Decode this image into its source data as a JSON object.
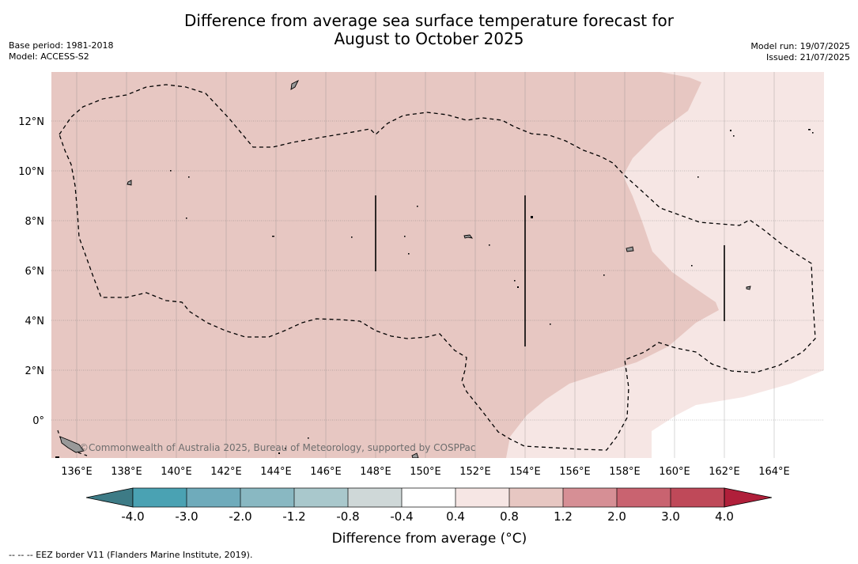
{
  "title": {
    "line1": "Difference from average sea surface temperature forecast for",
    "line2": "August to October 2025"
  },
  "meta_left": {
    "base_period": "Base period: 1981-2018",
    "model": "Model: ACCESS-S2"
  },
  "meta_right": {
    "model_run": "Model run: 19/07/2025",
    "issued": "Issued: 21/07/2025"
  },
  "map": {
    "longitude_ticks": [
      "136°E",
      "138°E",
      "140°E",
      "142°E",
      "144°E",
      "146°E",
      "148°E",
      "150°E",
      "152°E",
      "154°E",
      "156°E",
      "158°E",
      "160°E",
      "162°E",
      "164°E"
    ],
    "latitude_ticks": [
      "12°N",
      "10°N",
      "8°N",
      "6°N",
      "4°N",
      "2°N",
      "0°"
    ],
    "lon_range": [
      135,
      166
    ],
    "lat_range": [
      -1.5,
      14
    ],
    "copyright": "©Commonwealth of Australia 2025, Bureau of Meteorology, supported by COSPPac",
    "shading_colors": {
      "range_0_4_to_0_8": "#f6e6e4",
      "range_0_8_to_1_2": "#e7c7c2",
      "range_minus_0_4_to_0_4": "#ffffff"
    }
  },
  "colorbar": {
    "label": "Difference from average (°C)",
    "tick_labels": [
      "-4.0",
      "-3.0",
      "-2.0",
      "-1.2",
      "-0.8",
      "-0.4",
      "0.4",
      "0.8",
      "1.2",
      "2.0",
      "3.0",
      "4.0"
    ],
    "colors": [
      "#3d7b86",
      "#4aa2b3",
      "#6fabbb",
      "#89b8c2",
      "#a9c8cc",
      "#cfd8d8",
      "#ffffff",
      "#f6e6e4",
      "#e7c7c2",
      "#d68f95",
      "#c96370",
      "#bf4959",
      "#b01f3a"
    ]
  },
  "footnote": "--  --  -- EEZ border V11 (Flanders Marine Institute, 2019)."
}
